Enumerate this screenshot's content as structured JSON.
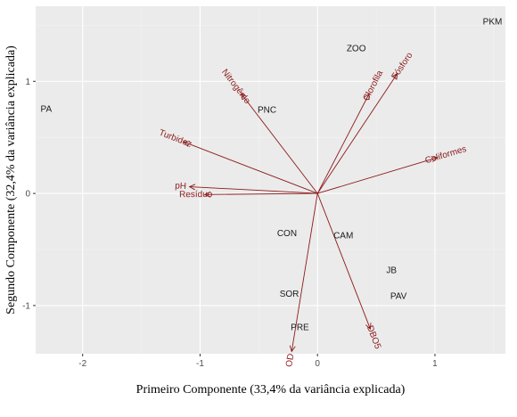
{
  "chart_data": {
    "type": "scatter",
    "subtype": "pca-biplot",
    "xlabel": "Primeiro Componente (33,4% da variância explicada)",
    "ylabel": "Segundo Componente (32,4% da variância explicada)",
    "xlim": [
      -2.4,
      1.6
    ],
    "ylim": [
      -1.43,
      1.67
    ],
    "xticks": [
      -2,
      -1,
      0,
      1
    ],
    "yticks": [
      -1,
      0,
      1
    ],
    "grid": true,
    "colors": {
      "panel": "#ebebeb",
      "grid_major": "#ffffff",
      "grid_minor": "#f5f5f5",
      "arrow": "#8b1a1a",
      "points": "#1a1a1a"
    },
    "points": [
      {
        "label": "PKM",
        "x": 1.49,
        "y": 1.53
      },
      {
        "label": "ZOO",
        "x": 0.33,
        "y": 1.29
      },
      {
        "label": "PA",
        "x": -2.31,
        "y": 0.75
      },
      {
        "label": "PNC",
        "x": -0.43,
        "y": 0.74
      },
      {
        "label": "CON",
        "x": -0.26,
        "y": -0.36
      },
      {
        "label": "CAM",
        "x": 0.22,
        "y": -0.38
      },
      {
        "label": "JB",
        "x": 0.63,
        "y": -0.69
      },
      {
        "label": "PAV",
        "x": 0.69,
        "y": -0.92
      },
      {
        "label": "SOR",
        "x": -0.24,
        "y": -0.9
      },
      {
        "label": "PRE",
        "x": -0.15,
        "y": -1.2
      }
    ],
    "vectors": [
      {
        "label": "Nitrogênio",
        "x": -0.65,
        "y": 0.89
      },
      {
        "label": "Clorofila",
        "x": 0.44,
        "y": 0.89
      },
      {
        "label": "Fósforo",
        "x": 0.68,
        "y": 1.07
      },
      {
        "label": "Turbidez",
        "x": -1.14,
        "y": 0.46
      },
      {
        "label": "Coliformes",
        "x": 1.02,
        "y": 0.32
      },
      {
        "label": "pH",
        "x": -1.09,
        "y": 0.06
      },
      {
        "label": "Resíduo",
        "x": -0.96,
        "y": -0.01
      },
      {
        "label": "OD",
        "x": -0.22,
        "y": -1.41
      },
      {
        "label": "DBO5",
        "x": 0.45,
        "y": -1.21
      }
    ]
  }
}
